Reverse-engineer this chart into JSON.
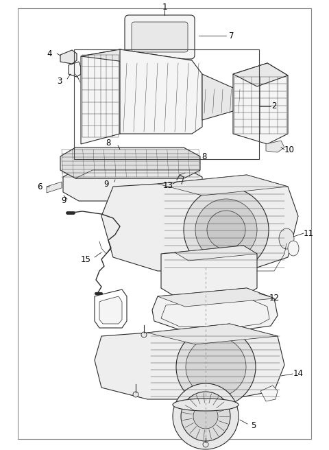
{
  "bg_color": "#ffffff",
  "line_color": "#2a2a2a",
  "label_color": "#000000",
  "fig_width": 4.8,
  "fig_height": 6.56,
  "dpi": 100,
  "border": [
    0.055,
    0.018,
    0.945,
    0.975
  ],
  "label_fontsize": 8.5
}
